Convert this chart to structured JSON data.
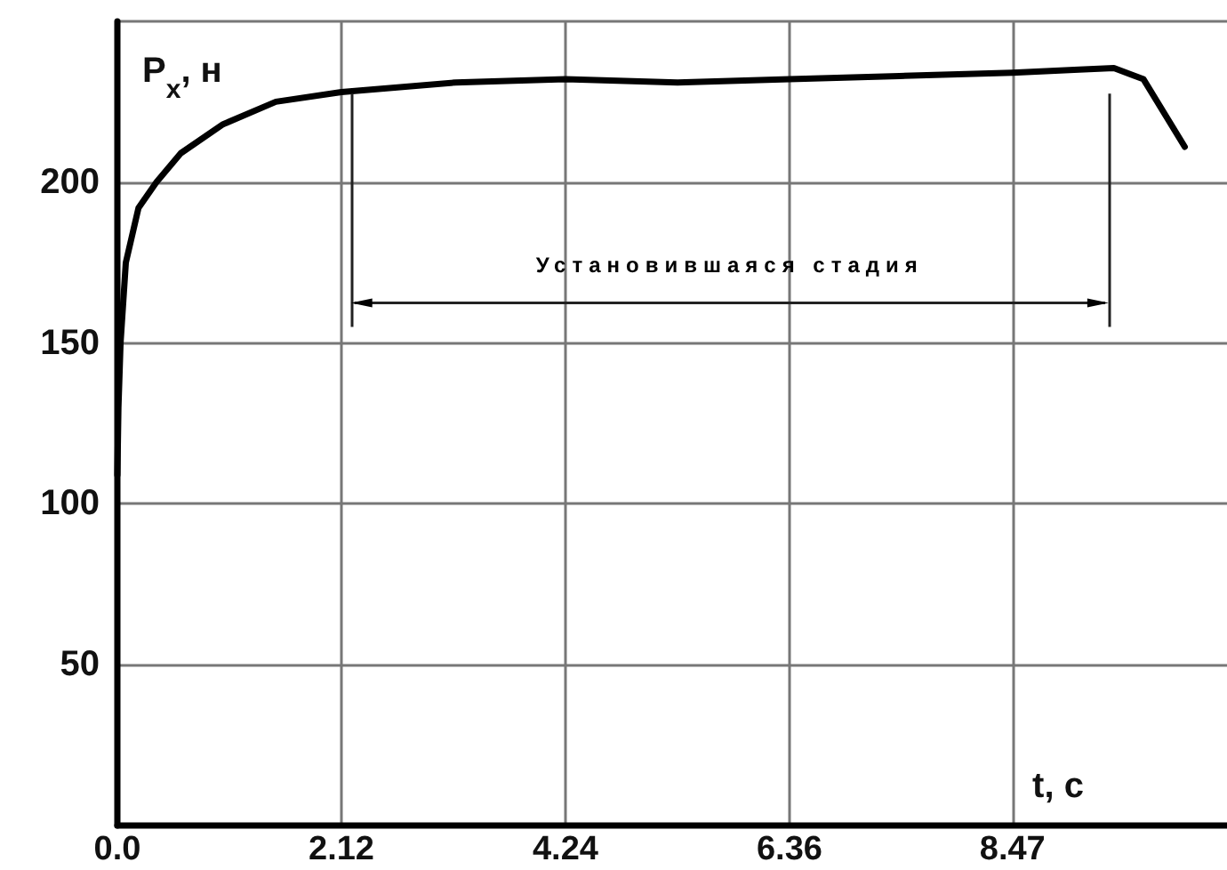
{
  "chart_data": {
    "type": "line",
    "ylabel": "P$_{x}$, н",
    "xlabel": "t, c",
    "x": [
      0.0,
      0.01,
      0.03,
      0.08,
      0.2,
      0.37,
      0.6,
      1.0,
      1.5,
      2.12,
      3.2,
      4.24,
      5.3,
      6.36,
      7.4,
      8.47,
      9.1,
      9.43,
      9.71,
      10.1
    ],
    "series": [
      {
        "color": "#000000",
        "values": [
          109,
          130,
          150,
          175,
          192,
          200,
          209,
          218,
          225,
          228,
          231,
          232,
          231,
          232,
          233,
          234,
          235,
          235.5,
          232,
          211
        ]
      }
    ],
    "ref_lines": [
      {
        "axis": "x",
        "value": 2.21
      },
      {
        "axis": "x",
        "value": 9.38
      }
    ],
    "annotations": [
      "Установившаяся стадия"
    ],
    "xlim": [
      0,
      10.5
    ],
    "ylim": [
      0,
      250
    ],
    "xticks": [
      {
        "value": 0,
        "label": "0.0"
      },
      2.12,
      4.24,
      6.36,
      8.47
    ],
    "yticks": [
      50,
      100,
      150,
      200,
      {
        "value": 250,
        "label": null
      }
    ],
    "grid": true,
    "marker": "none",
    "line_style": "solid"
  }
}
